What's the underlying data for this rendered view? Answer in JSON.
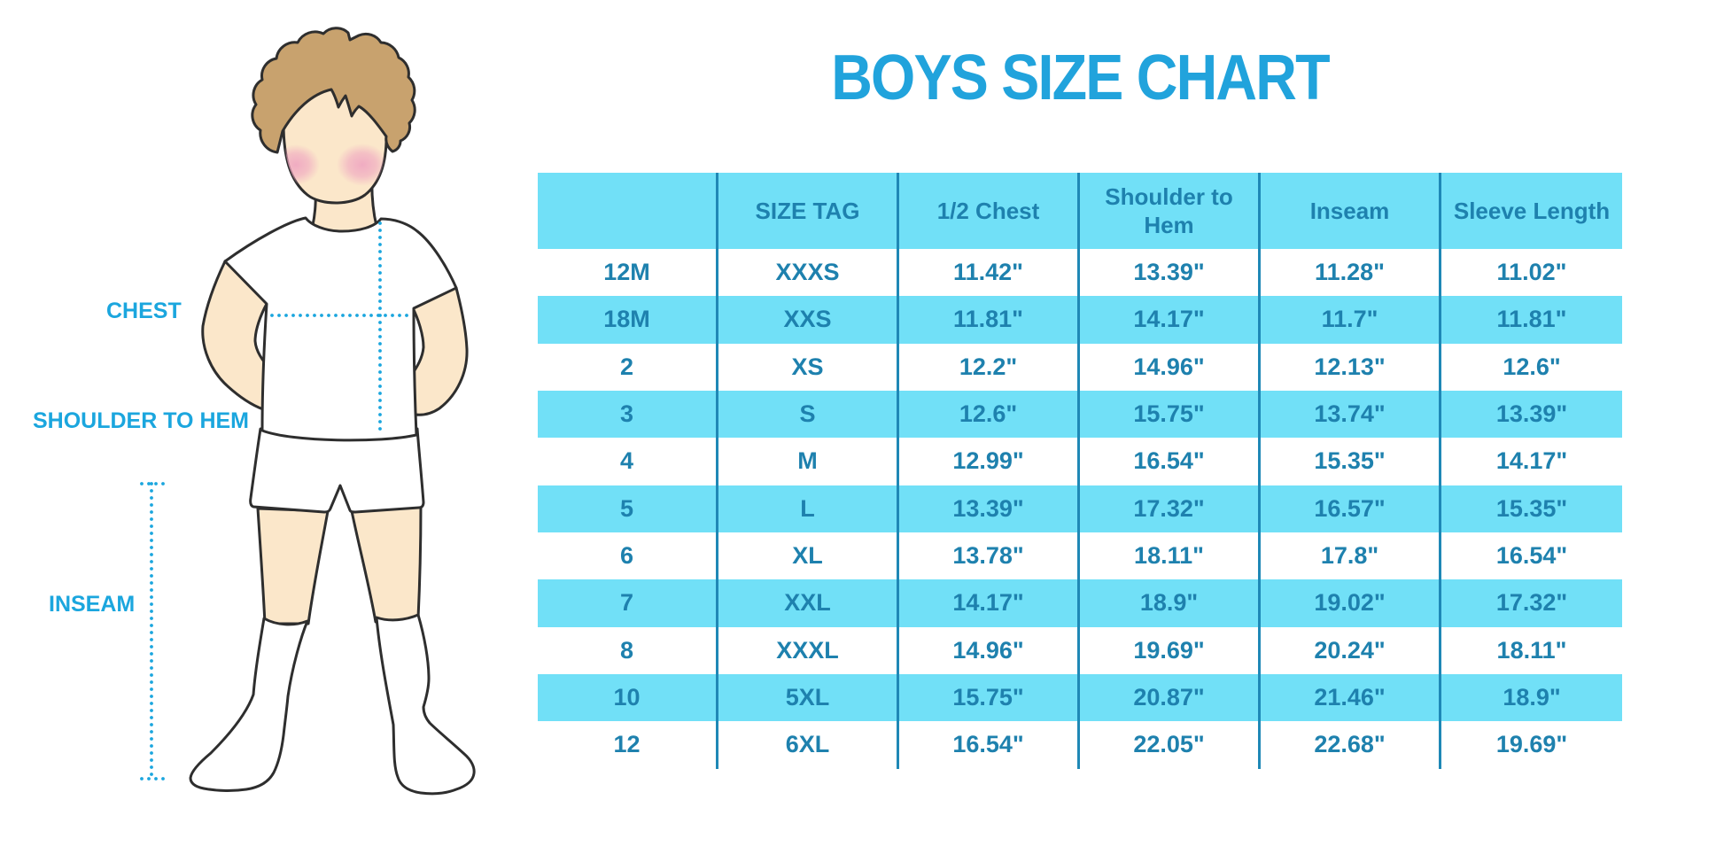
{
  "title": "BOYS SIZE CHART",
  "colors": {
    "row_cyan": "#71e0f7",
    "table_text_blue": "#1e81ae",
    "column_line_blue": "#1f88b6",
    "title_blue": "#21a3dc",
    "measure_accent_cyan": "#1ba6de",
    "skin": "#fbe7ca",
    "hair_brown": "#c8a26e",
    "blush_pink": "#f2aec6",
    "outline_dark": "#2e2e2e"
  },
  "figure": {
    "description": "boy-mannequin-illustration",
    "labels": {
      "chest": "CHEST",
      "shoulder_to_hem": "SHOULDER TO HEM",
      "inseam": "INSEAM"
    }
  },
  "table": {
    "headers": [
      "",
      "SIZE TAG",
      "1/2 Chest",
      "Shoulder to Hem",
      "Inseam",
      "Sleeve Length"
    ],
    "rows": [
      [
        "12M",
        "XXXS",
        "11.42\"",
        "13.39\"",
        "11.28\"",
        "11.02\""
      ],
      [
        "18M",
        "XXS",
        "11.81\"",
        "14.17\"",
        "11.7\"",
        "11.81\""
      ],
      [
        "2",
        "XS",
        "12.2\"",
        "14.96\"",
        "12.13\"",
        "12.6\""
      ],
      [
        "3",
        "S",
        "12.6\"",
        "15.75\"",
        "13.74\"",
        "13.39\""
      ],
      [
        "4",
        "M",
        "12.99\"",
        "16.54\"",
        "15.35\"",
        "14.17\""
      ],
      [
        "5",
        "L",
        "13.39\"",
        "17.32\"",
        "16.57\"",
        "15.35\""
      ],
      [
        "6",
        "XL",
        "13.78\"",
        "18.11\"",
        "17.8\"",
        "16.54\""
      ],
      [
        "7",
        "XXL",
        "14.17\"",
        "18.9\"",
        "19.02\"",
        "17.32\""
      ],
      [
        "8",
        "XXXL",
        "14.96\"",
        "19.69\"",
        "20.24\"",
        "18.11\""
      ],
      [
        "10",
        "5XL",
        "15.75\"",
        "20.87\"",
        "21.46\"",
        "18.9\""
      ],
      [
        "12",
        "6XL",
        "16.54\"",
        "22.05\"",
        "22.68\"",
        "19.69\""
      ]
    ]
  }
}
